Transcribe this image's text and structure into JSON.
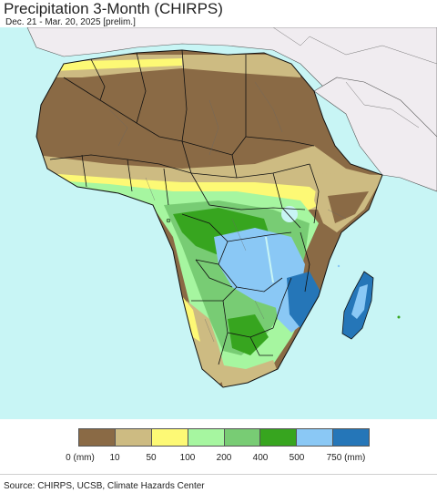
{
  "header": {
    "title": "Precipitation 3-Month (CHIRPS)",
    "subtitle": "Dec. 21 - Mar. 20, 2025 [prelim.]"
  },
  "map": {
    "region": "Africa",
    "colors": {
      "ocean": "#c8f5f5",
      "non_africa_land": "#f0ecf0",
      "border": "#111111"
    }
  },
  "legend": {
    "colors": [
      "#8a6a45",
      "#cdbb82",
      "#fdf975",
      "#a6f6a0",
      "#78cc74",
      "#37a51f",
      "#8ac8f5",
      "#2576b8"
    ],
    "labels": [
      "0 (mm)",
      "10",
      "50",
      "100",
      "200",
      "400",
      "500",
      "750 (mm)"
    ]
  },
  "footer": {
    "source": "Source: CHIRPS, UCSB, Climate Hazards Center"
  }
}
